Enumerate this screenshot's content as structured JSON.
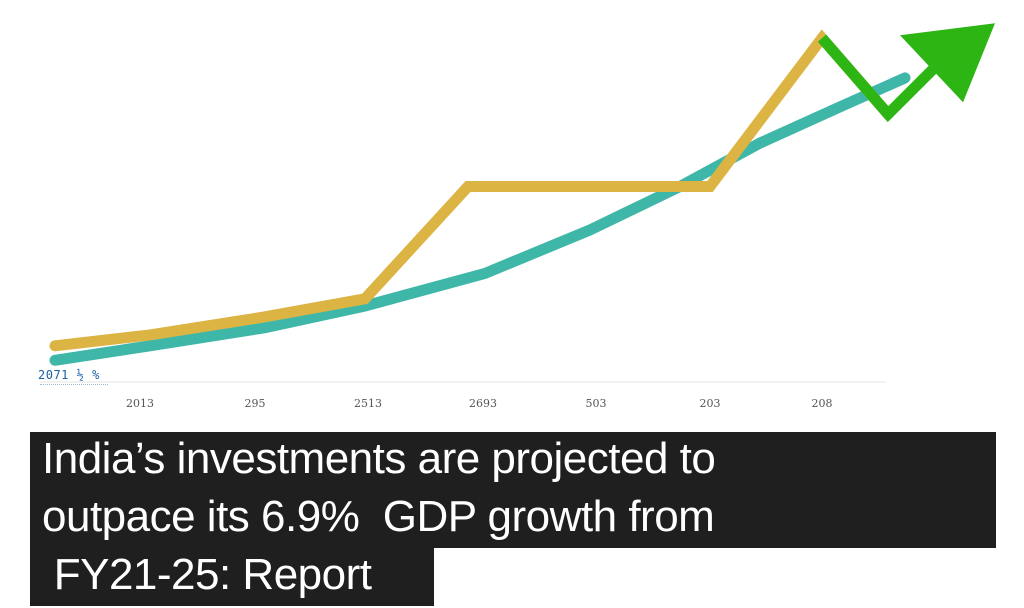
{
  "headline": {
    "line1": "India’s investments are projected to",
    "line2": "outpace its 6.9%  GDP growth from",
    "line3": " FY21-25: Report"
  },
  "watermark": "2071 ½ %",
  "colors": {
    "investment_line": "#dcb443",
    "gdp_line": "#3fb7a8",
    "arrow": "#2db514",
    "headline_bg": "#1f1f1f",
    "headline_text": "#ffffff"
  },
  "chart_data": {
    "type": "line",
    "x_tick_labels": [
      "2013",
      "295",
      "2513",
      "2693",
      "503",
      "203",
      "208"
    ],
    "series": [
      {
        "values": [
          10,
          13,
          18,
          23,
          54,
          54,
          54,
          95,
          74
        ]
      },
      {
        "values": [
          6,
          10,
          15,
          21,
          30,
          42,
          54,
          66,
          76,
          84
        ]
      }
    ],
    "arrow": {
      "x": 975,
      "y": 98
    },
    "ylim": [
      0,
      100
    ],
    "grid": false,
    "legend": "none"
  }
}
